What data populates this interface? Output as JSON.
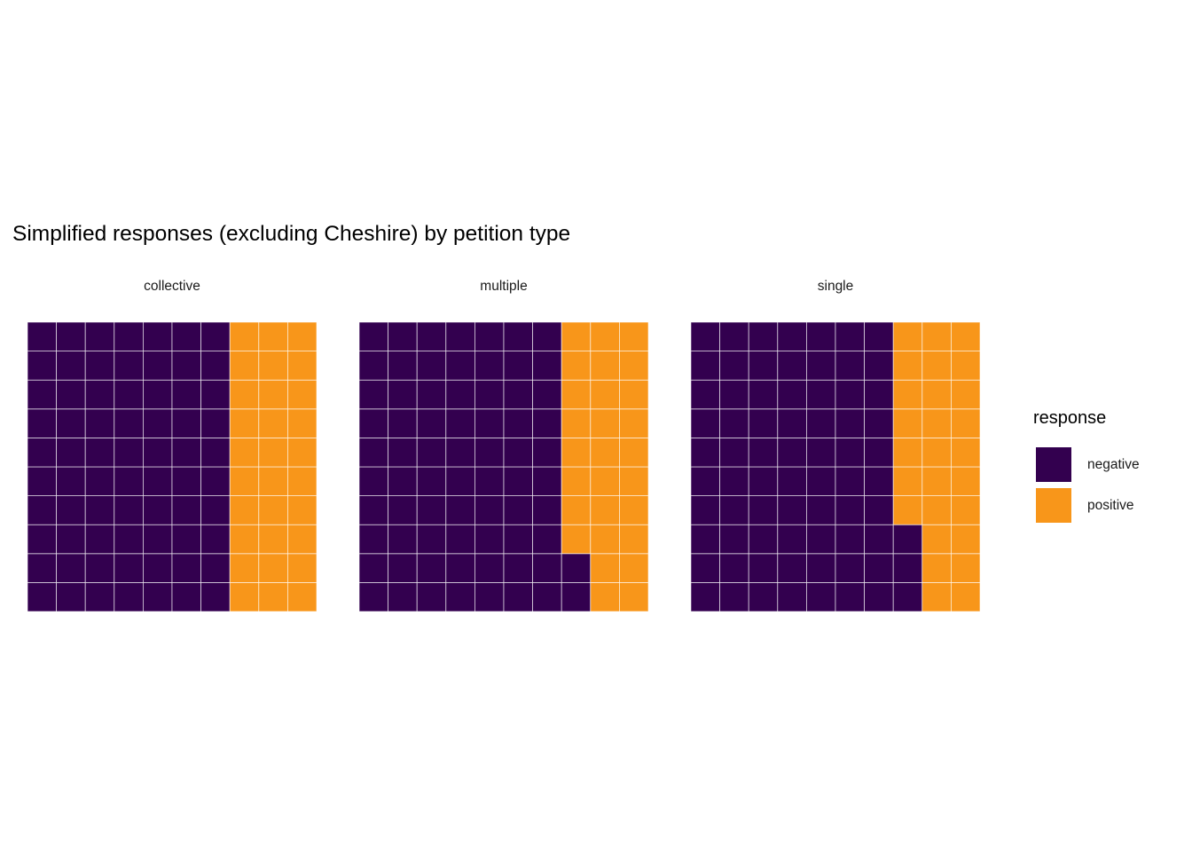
{
  "chart_data": {
    "type": "waffle",
    "title": "Simplified responses (excluding Cheshire) by petition type",
    "grid": {
      "rows": 10,
      "cols": 10
    },
    "fill_order": "column-wise, left to right, bottom to top",
    "panels": [
      {
        "label": "collective",
        "values": {
          "negative": 70,
          "positive": 30
        }
      },
      {
        "label": "multiple",
        "values": {
          "negative": 72,
          "positive": 28
        }
      },
      {
        "label": "single",
        "values": {
          "negative": 73,
          "positive": 27
        }
      }
    ],
    "legend": {
      "title": "response",
      "position": "right",
      "entries": [
        {
          "label": "negative",
          "color": "#33004F"
        },
        {
          "label": "positive",
          "color": "#F8961A"
        }
      ]
    }
  }
}
